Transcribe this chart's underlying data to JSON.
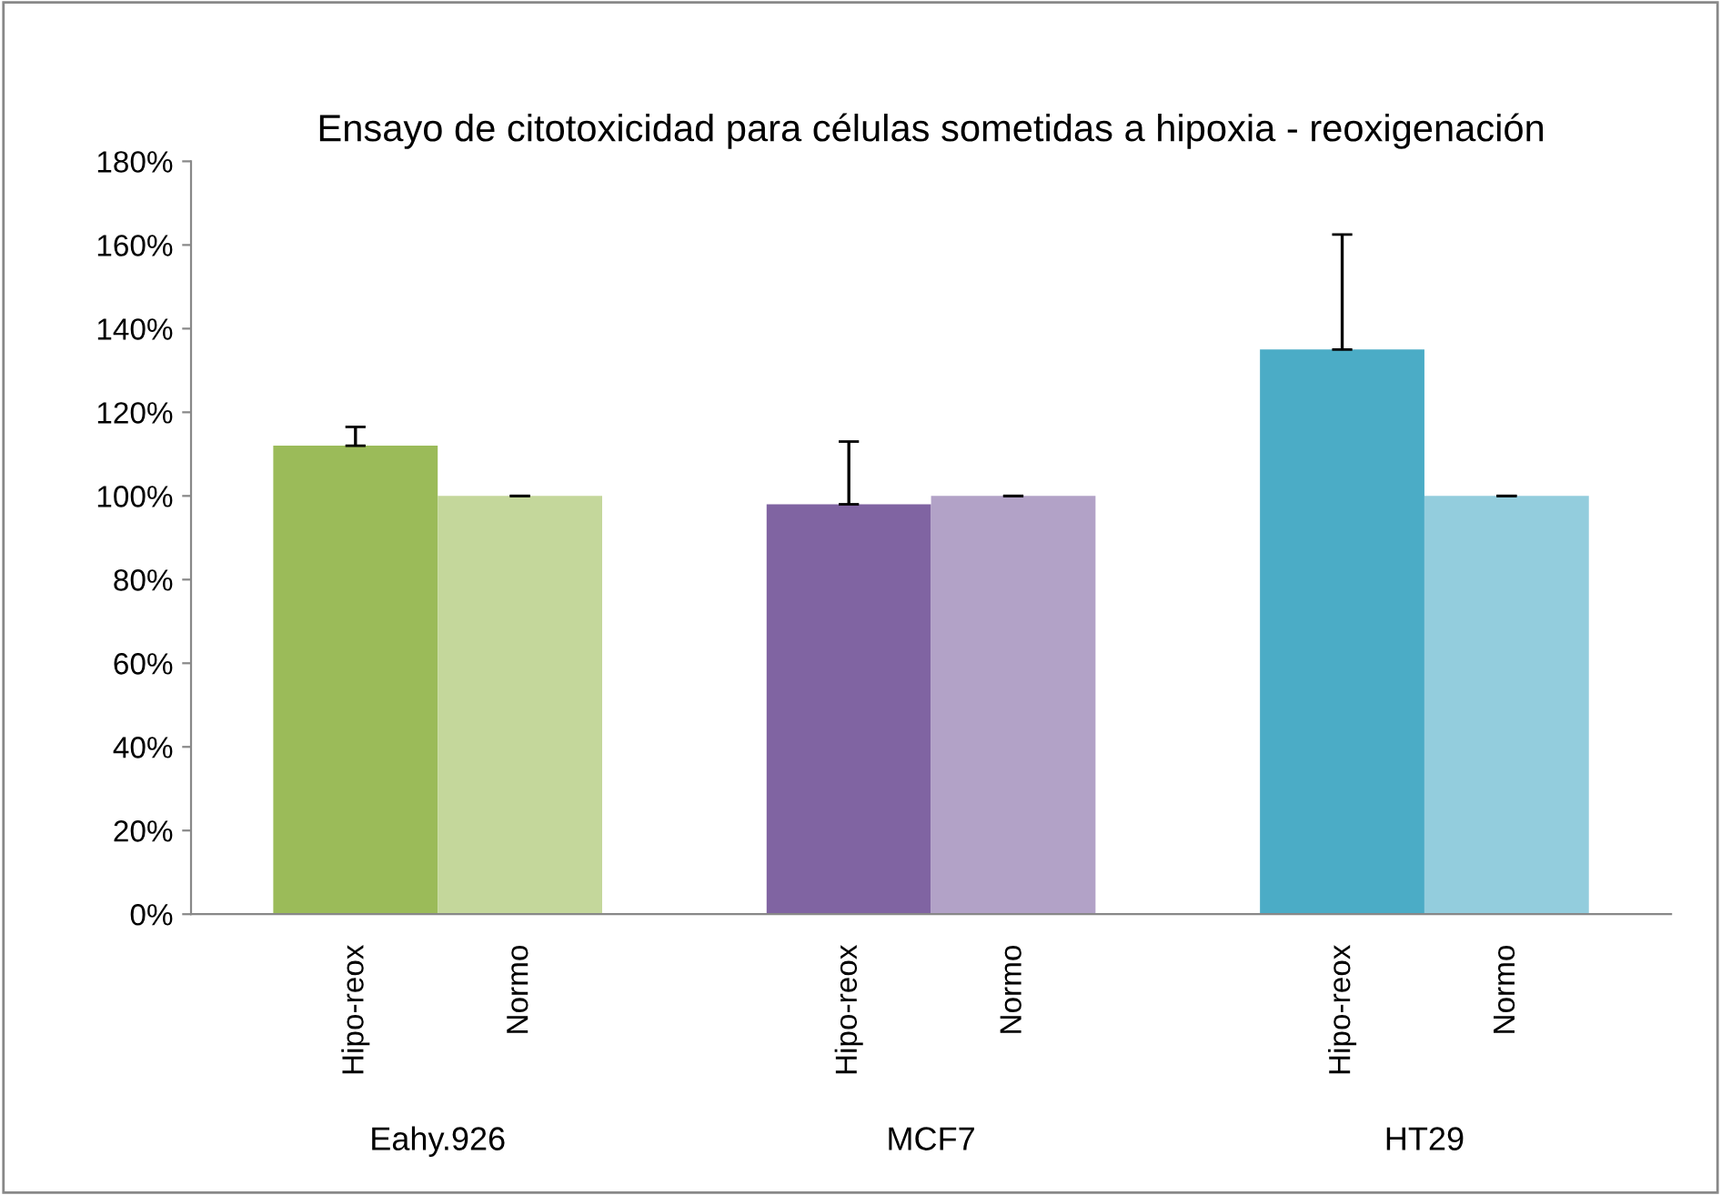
{
  "chart_data": {
    "type": "bar",
    "title": "Ensayo de citotoxicidad para células sometidas a hipoxia - reoxigenación",
    "categories": [
      "Hipo-reox",
      "Normo",
      null,
      "Hipo-reox",
      "Normo",
      null,
      "Hipo-reox",
      "Normo"
    ],
    "values": [
      112,
      100,
      null,
      98,
      100,
      null,
      135,
      100
    ],
    "colors": [
      "#9bbb59",
      "#c4d79b",
      null,
      "#8064a2",
      "#b2a2c7",
      null,
      "#4bacc6",
      "#93cddd"
    ],
    "errors": [
      [
        112,
        116.5
      ],
      [
        100,
        100
      ],
      null,
      [
        98,
        113
      ],
      [
        100,
        100
      ],
      null,
      [
        135,
        162.5
      ],
      [
        100,
        100
      ]
    ],
    "ylim": [
      0,
      180
    ],
    "yticks": [
      {
        "value": 0,
        "label": "0%"
      },
      {
        "value": 20,
        "label": "20%"
      },
      {
        "value": 40,
        "label": "40%"
      },
      {
        "value": 60,
        "label": "60%"
      },
      {
        "value": 80,
        "label": "80%"
      },
      {
        "value": 100,
        "label": "100%"
      },
      {
        "value": 120,
        "label": "120%"
      },
      {
        "value": 140,
        "label": "140%"
      },
      {
        "value": 160,
        "label": "160%"
      },
      {
        "value": 180,
        "label": "180%"
      }
    ],
    "annotations": [
      "Eahy.926",
      "MCF7",
      "HT29"
    ],
    "grid": false,
    "legend": false
  }
}
